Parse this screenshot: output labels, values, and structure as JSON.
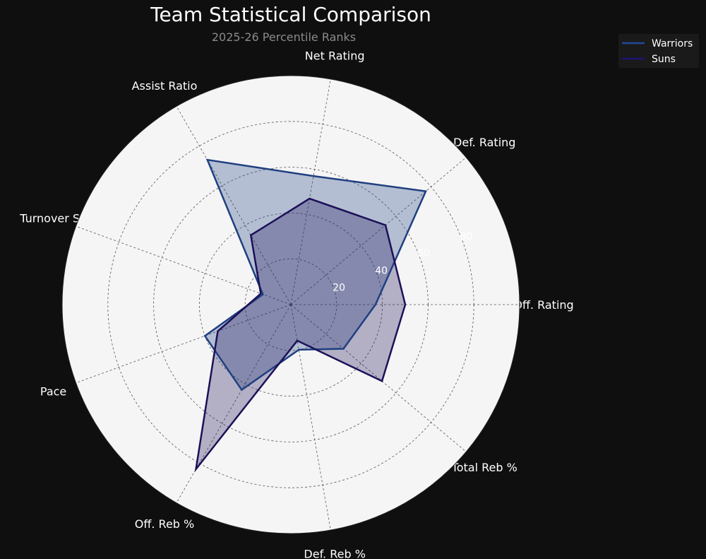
{
  "chart_data": {
    "type": "radar",
    "title": "Team Statistical Comparison",
    "subtitle": "2025-26 Percentile Ranks",
    "categories": [
      "Off. Rating",
      "Def. Rating",
      "Net Rating",
      "Assist Ratio",
      "Turnover Se",
      "Pace",
      "Off. Reb %",
      "Def. Reb %",
      "Total Reb %"
    ],
    "rlim": [
      0,
      100
    ],
    "rticks": [
      20,
      40,
      60,
      80
    ],
    "grid": true,
    "legend_placement": "top-right",
    "series": [
      {
        "name": "Warriors",
        "color": "#1f3f80",
        "values": [
          37,
          77,
          57,
          73,
          13,
          40,
          43,
          20,
          30
        ]
      },
      {
        "name": "Suns",
        "color": "#1c1058",
        "values": [
          50,
          54,
          47,
          35,
          14,
          34,
          83,
          16,
          52
        ]
      }
    ],
    "colors": {
      "background": "#0f0f0f",
      "plot_background": "#f5f5f5",
      "subtitle": "#8a8a8a"
    }
  }
}
